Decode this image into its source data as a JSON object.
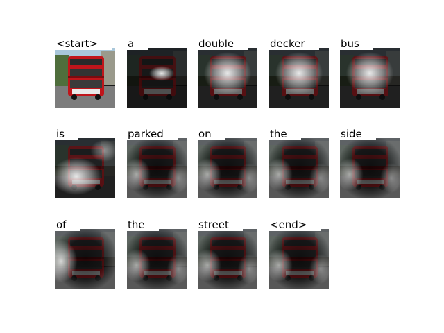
{
  "figure": {
    "words": [
      {
        "text": "<start>",
        "attention": "none"
      },
      {
        "text": "a",
        "attention": "center-bright"
      },
      {
        "text": "double",
        "attention": "center-diffuse"
      },
      {
        "text": "decker",
        "attention": "center-diffuse"
      },
      {
        "text": "bus",
        "attention": "center-diffuse"
      },
      {
        "text": "is",
        "attention": "lower-left"
      },
      {
        "text": "parked",
        "attention": "surround"
      },
      {
        "text": "on",
        "attention": "surround"
      },
      {
        "text": "the",
        "attention": "surround"
      },
      {
        "text": "side",
        "attention": "surround"
      },
      {
        "text": "of",
        "attention": "left-edge"
      },
      {
        "text": "the",
        "attention": "surround"
      },
      {
        "text": "street",
        "attention": "surround"
      },
      {
        "text": "<end>",
        "attention": "surround"
      }
    ],
    "colors": {
      "bus": "#c0151b",
      "bus_dark": "#7a0b10",
      "sky": "#a9c7da",
      "road": "#7c7c7c",
      "trees": "#4f6e3c"
    }
  }
}
